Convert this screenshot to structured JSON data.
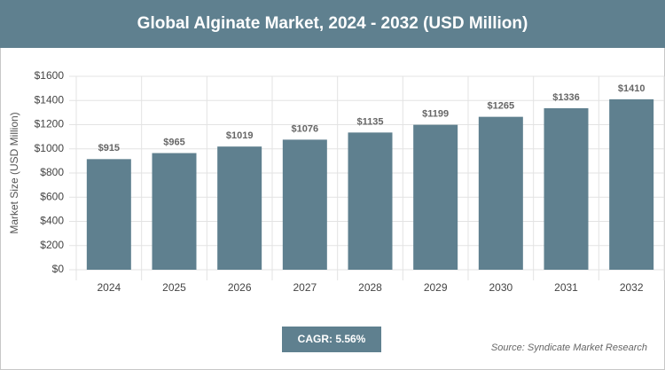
{
  "chart_data": {
    "type": "bar",
    "title": "Global Alginate Market, 2024 - 2032 (USD Million)",
    "ylabel": "Market Size (USD Million)",
    "categories": [
      "2024",
      "2025",
      "2026",
      "2027",
      "2028",
      "2029",
      "2030",
      "2031",
      "2032"
    ],
    "values": [
      915,
      965,
      1019,
      1076,
      1135,
      1199,
      1265,
      1336,
      1410
    ],
    "value_labels": [
      "$915",
      "$965",
      "$1019",
      "$1076",
      "$1135",
      "$1199",
      "$1265",
      "$1336",
      "$1410"
    ],
    "color": "#5f808f",
    "ylim": [
      0,
      1600
    ],
    "yticks": [
      {
        "value": 0,
        "label": "$0"
      },
      {
        "value": 200,
        "label": "$200"
      },
      {
        "value": 400,
        "label": "$400"
      },
      {
        "value": 600,
        "label": "$600"
      },
      {
        "value": 800,
        "label": "$800"
      },
      {
        "value": 1000,
        "label": "$1000"
      },
      {
        "value": 1200,
        "label": "$1200"
      },
      {
        "value": 1400,
        "label": "$1400"
      },
      {
        "value": 1600,
        "label": "$1600"
      }
    ],
    "grid": true,
    "annotations": [
      "CAGR: 5.56%",
      "Source: Syndicate Market Research"
    ]
  }
}
